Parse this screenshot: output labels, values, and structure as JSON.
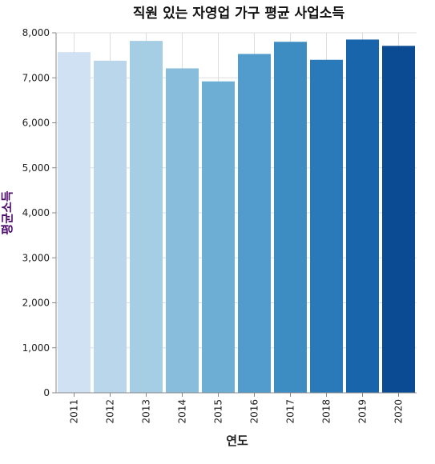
{
  "chart_data": {
    "type": "bar",
    "title": "직원 있는 자영업 가구 평균 사업소득",
    "xlabel": "연도",
    "ylabel": "평균소득",
    "categories": [
      "2011",
      "2012",
      "2013",
      "2014",
      "2015",
      "2016",
      "2017",
      "2018",
      "2019",
      "2020"
    ],
    "values": [
      7570,
      7380,
      7820,
      7210,
      6920,
      7530,
      7800,
      7400,
      7850,
      7710
    ],
    "ylim": [
      0,
      8000
    ],
    "yticks": [
      0,
      1000,
      2000,
      3000,
      4000,
      5000,
      6000,
      7000,
      8000
    ],
    "ytick_labels": [
      "0",
      "1,000",
      "2,000",
      "3,000",
      "4,000",
      "5,000",
      "6,000",
      "7,000",
      "8,000"
    ],
    "grid": true,
    "colors": [
      "#cfe1f2",
      "#bad6eb",
      "#a5cde3",
      "#88bedc",
      "#6daed5",
      "#519ccc",
      "#3d8dc3",
      "#2a7ab9",
      "#1865ac",
      "#0b4b93"
    ],
    "ylabel_color": "#4b0c6b",
    "xlabel_color": "#222222"
  }
}
